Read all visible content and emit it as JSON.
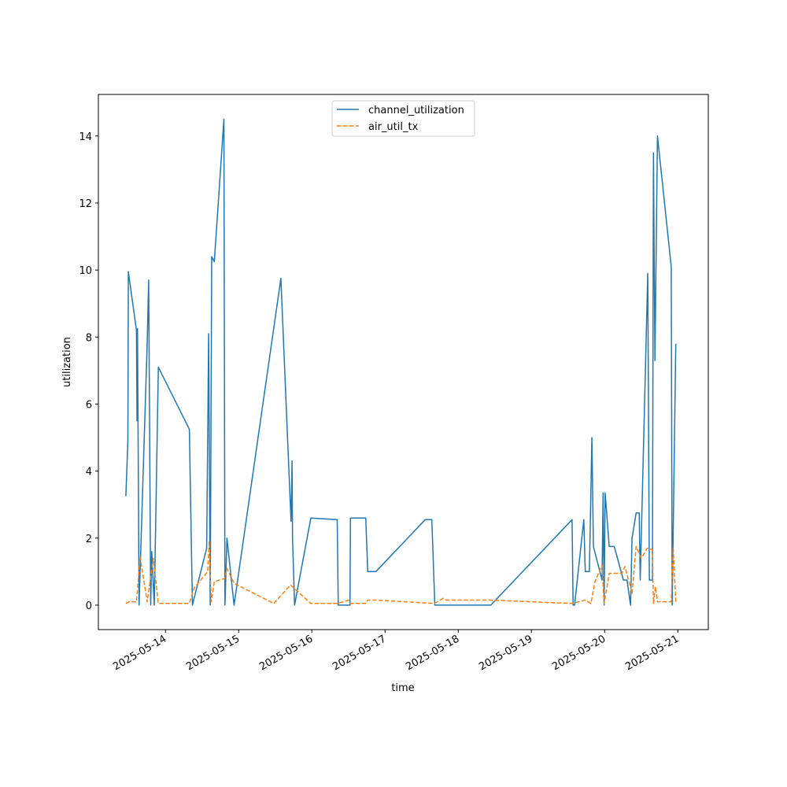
{
  "chart_data": {
    "type": "line",
    "xlabel": "time",
    "ylabel": "utilization",
    "xlim": [
      "2025-05-13 02:00",
      "2025-05-21 10:00"
    ],
    "ylim": [
      -0.73,
      15.24
    ],
    "x_ticks": [
      "2025-05-14",
      "2025-05-15",
      "2025-05-16",
      "2025-05-17",
      "2025-05-18",
      "2025-05-19",
      "2025-05-20",
      "2025-05-21"
    ],
    "y_ticks": [
      "0",
      "2",
      "4",
      "6",
      "8",
      "10",
      "12",
      "14"
    ],
    "legend_position": "upper center",
    "grid": false,
    "series": [
      {
        "name": "channel_utilization",
        "color": "#1f77b4",
        "style": "solid",
        "points": [
          [
            "2025-05-13 11:00",
            3.25
          ],
          [
            "2025-05-13 11:40",
            4.9
          ],
          [
            "2025-05-13 11:50",
            9.95
          ],
          [
            "2025-05-13 14:30",
            8.2
          ],
          [
            "2025-05-13 14:40",
            5.5
          ],
          [
            "2025-05-13 14:50",
            8.25
          ],
          [
            "2025-05-13 15:20",
            0.0
          ],
          [
            "2025-05-13 18:00",
            7.8
          ],
          [
            "2025-05-13 18:30",
            9.7
          ],
          [
            "2025-05-13 19:10",
            0.0
          ],
          [
            "2025-05-13 19:30",
            1.6
          ],
          [
            "2025-05-13 20:20",
            0.0
          ],
          [
            "2025-05-13 21:00",
            3.5
          ],
          [
            "2025-05-13 21:40",
            7.1
          ],
          [
            "2025-05-14 07:50",
            5.25
          ],
          [
            "2025-05-14 08:50",
            0.0
          ],
          [
            "2025-05-14 13:30",
            1.7
          ],
          [
            "2025-05-14 14:10",
            8.1
          ],
          [
            "2025-05-14 14:40",
            0.0
          ],
          [
            "2025-05-14 15:10",
            10.4
          ],
          [
            "2025-05-14 16:00",
            10.25
          ],
          [
            "2025-05-14 19:10",
            14.5
          ],
          [
            "2025-05-14 19:30",
            0.0
          ],
          [
            "2025-05-14 20:10",
            2.0
          ],
          [
            "2025-05-14 22:30",
            0.0
          ],
          [
            "2025-05-15 13:50",
            9.75
          ],
          [
            "2025-05-15 17:10",
            2.5
          ],
          [
            "2025-05-15 17:30",
            4.3
          ],
          [
            "2025-05-15 17:40",
            2.0
          ],
          [
            "2025-05-15 18:20",
            0.0
          ],
          [
            "2025-05-15 23:40",
            2.6
          ],
          [
            "2025-05-16 08:20",
            2.55
          ],
          [
            "2025-05-16 08:40",
            0.0
          ],
          [
            "2025-05-16 12:30",
            0.0
          ],
          [
            "2025-05-16 12:40",
            2.6
          ],
          [
            "2025-05-16 17:40",
            2.6
          ],
          [
            "2025-05-16 18:20",
            1.0
          ],
          [
            "2025-05-16 21:00",
            1.0
          ],
          [
            "2025-05-17 13:10",
            2.55
          ],
          [
            "2025-05-17 15:20",
            2.55
          ],
          [
            "2025-05-17 16:20",
            0.0
          ],
          [
            "2025-05-18 10:40",
            0.0
          ],
          [
            "2025-05-19 13:20",
            2.55
          ],
          [
            "2025-05-19 13:40",
            0.0
          ],
          [
            "2025-05-19 14:10",
            0.0
          ],
          [
            "2025-05-19 17:10",
            2.55
          ],
          [
            "2025-05-19 17:40",
            1.0
          ],
          [
            "2025-05-19 19:00",
            1.0
          ],
          [
            "2025-05-19 19:50",
            5.0
          ],
          [
            "2025-05-19 20:20",
            1.75
          ],
          [
            "2025-05-19 23:10",
            0.75
          ],
          [
            "2025-05-19 23:30",
            3.35
          ],
          [
            "2025-05-19 23:50",
            0.0
          ],
          [
            "2025-05-20 00:10",
            3.35
          ],
          [
            "2025-05-20 01:30",
            1.75
          ],
          [
            "2025-05-20 03:10",
            1.75
          ],
          [
            "2025-05-20 06:10",
            0.75
          ],
          [
            "2025-05-20 07:20",
            0.75
          ],
          [
            "2025-05-20 08:30",
            0.0
          ],
          [
            "2025-05-20 09:00",
            2.0
          ],
          [
            "2025-05-20 10:20",
            2.75
          ],
          [
            "2025-05-20 11:20",
            2.75
          ],
          [
            "2025-05-20 11:40",
            0.75
          ],
          [
            "2025-05-20 14:10",
            9.9
          ],
          [
            "2025-05-20 14:40",
            0.75
          ],
          [
            "2025-05-20 15:40",
            0.75
          ],
          [
            "2025-05-20 16:00",
            13.5
          ],
          [
            "2025-05-20 16:30",
            7.3
          ],
          [
            "2025-05-20 17:20",
            14.0
          ],
          [
            "2025-05-20 21:50",
            10.1
          ],
          [
            "2025-05-20 22:10",
            0.0
          ],
          [
            "2025-05-20 23:20",
            7.8
          ]
        ]
      },
      {
        "name": "air_util_tx",
        "color": "#ff7f0e",
        "style": "dashed",
        "points": [
          [
            "2025-05-13 11:00",
            0.05
          ],
          [
            "2025-05-13 12:00",
            0.1
          ],
          [
            "2025-05-13 14:30",
            0.1
          ],
          [
            "2025-05-13 15:40",
            1.45
          ],
          [
            "2025-05-13 18:00",
            0.1
          ],
          [
            "2025-05-13 20:00",
            1.4
          ],
          [
            "2025-05-13 21:40",
            0.05
          ],
          [
            "2025-05-14 07:50",
            0.05
          ],
          [
            "2025-05-14 09:20",
            0.5
          ],
          [
            "2025-05-14 13:50",
            1.0
          ],
          [
            "2025-05-14 14:20",
            1.9
          ],
          [
            "2025-05-14 15:00",
            0.1
          ],
          [
            "2025-05-14 16:00",
            0.7
          ],
          [
            "2025-05-14 19:30",
            0.8
          ],
          [
            "2025-05-14 20:10",
            1.1
          ],
          [
            "2025-05-14 22:30",
            0.65
          ],
          [
            "2025-05-15 11:30",
            0.05
          ],
          [
            "2025-05-15 17:00",
            0.6
          ],
          [
            "2025-05-15 23:40",
            0.05
          ],
          [
            "2025-05-16 08:30",
            0.05
          ],
          [
            "2025-05-16 12:00",
            0.15
          ],
          [
            "2025-05-16 12:40",
            0.05
          ],
          [
            "2025-05-16 17:40",
            0.05
          ],
          [
            "2025-05-16 18:20",
            0.15
          ],
          [
            "2025-05-16 21:00",
            0.15
          ],
          [
            "2025-05-17 16:10",
            0.05
          ],
          [
            "2025-05-17 19:00",
            0.2
          ],
          [
            "2025-05-17 20:00",
            0.15
          ],
          [
            "2025-05-18 10:40",
            0.15
          ],
          [
            "2025-05-19 13:20",
            0.05
          ],
          [
            "2025-05-19 17:40",
            0.15
          ],
          [
            "2025-05-19 19:30",
            0.05
          ],
          [
            "2025-05-19 20:50",
            0.7
          ],
          [
            "2025-05-19 23:10",
            1.2
          ],
          [
            "2025-05-19 23:50",
            0.05
          ],
          [
            "2025-05-20 01:30",
            0.95
          ],
          [
            "2025-05-20 05:40",
            0.95
          ],
          [
            "2025-05-20 06:40",
            1.15
          ],
          [
            "2025-05-20 09:00",
            0.35
          ],
          [
            "2025-05-20 10:20",
            1.75
          ],
          [
            "2025-05-20 12:00",
            1.4
          ],
          [
            "2025-05-20 14:00",
            1.7
          ],
          [
            "2025-05-20 15:40",
            1.65
          ],
          [
            "2025-05-20 16:00",
            0.05
          ],
          [
            "2025-05-20 16:40",
            0.55
          ],
          [
            "2025-05-20 17:20",
            0.1
          ],
          [
            "2025-05-20 21:50",
            0.1
          ],
          [
            "2025-05-20 22:30",
            1.7
          ],
          [
            "2025-05-20 23:20",
            0.1
          ]
        ]
      }
    ]
  }
}
